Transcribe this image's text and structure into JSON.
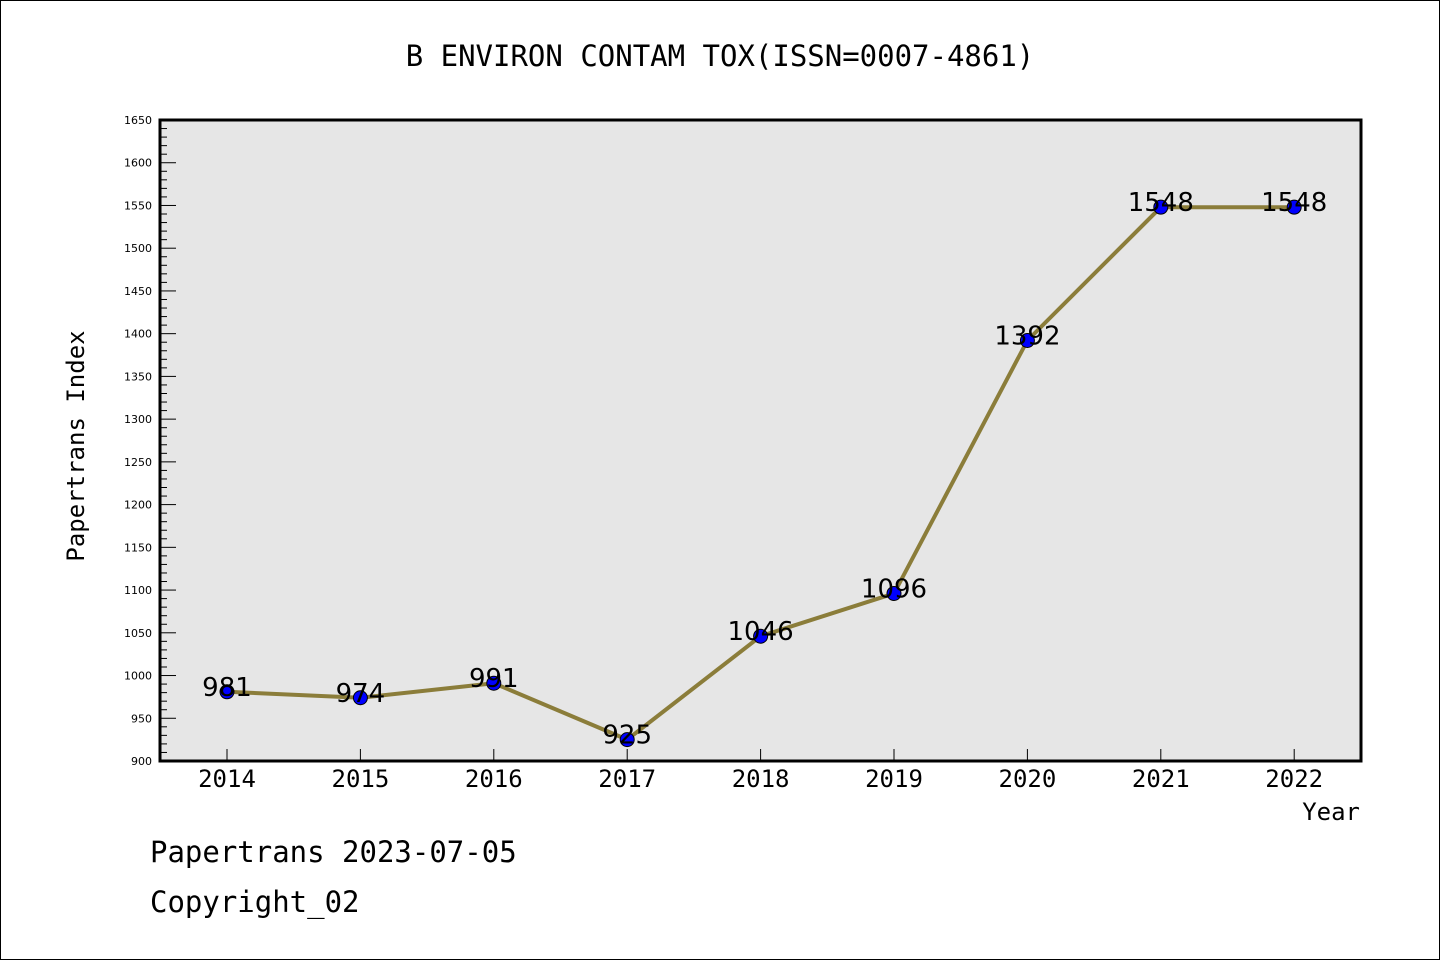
{
  "chart_data": {
    "type": "line",
    "title": "B ENVIRON CONTAM TOX(ISSN=0007-4861)",
    "xlabel": "Year",
    "ylabel": "Papertrans Index",
    "categories": [
      "2014",
      "2015",
      "2016",
      "2017",
      "2018",
      "2019",
      "2020",
      "2021",
      "2022"
    ],
    "series": [
      {
        "values": [
          981,
          974,
          991,
          925,
          1046,
          1096,
          1392,
          1548,
          1548
        ]
      }
    ],
    "data_labels": [
      "981",
      "974",
      "991",
      "925",
      "1046",
      "1096",
      "1392",
      "1548",
      "1548"
    ],
    "ylim": [
      900,
      1650
    ],
    "y_ticks": [
      "900",
      "950",
      "1000",
      "1050",
      "1100",
      "1150",
      "1200",
      "1250",
      "1300",
      "1350",
      "1400",
      "1450",
      "1500",
      "1550",
      "1600",
      "1650"
    ],
    "grid": false,
    "legend": "none",
    "colors": {
      "line": "#8b7d3a",
      "marker": "#0000ff",
      "plot_background": "#e6e6e6"
    }
  },
  "footer": {
    "line1": "Papertrans 2023-07-05",
    "line2": "Copyright_02"
  }
}
